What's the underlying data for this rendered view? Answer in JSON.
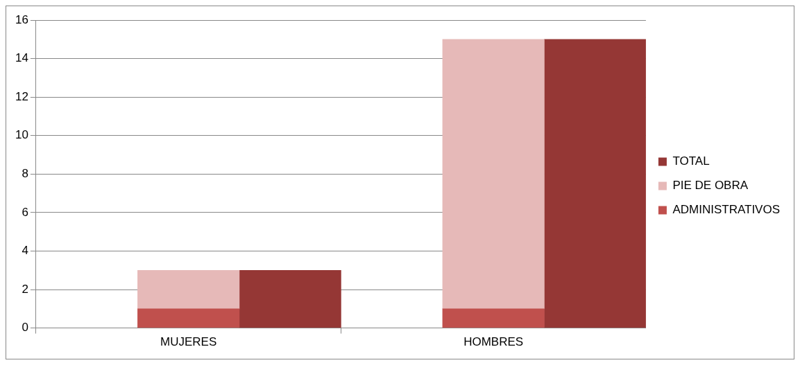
{
  "chart_data": {
    "type": "bar",
    "categories": [
      null,
      "MUJERES",
      null,
      null,
      "HOMBRES",
      null
    ],
    "stacked": true,
    "series": [
      {
        "name": "ADMINISTRATIVOS",
        "color": "#c0504d",
        "values": [
          null,
          1,
          null,
          null,
          1,
          null
        ]
      },
      {
        "name": "PIE DE OBRA",
        "color": "#e6b9b8",
        "values": [
          null,
          2,
          null,
          null,
          14,
          null
        ]
      },
      {
        "name": "TOTAL",
        "color": "#953735",
        "values": [
          null,
          null,
          3,
          null,
          null,
          15
        ]
      }
    ],
    "ylim": [
      0,
      16
    ],
    "yticks": [
      0,
      2,
      4,
      6,
      8,
      10,
      12,
      14,
      16
    ],
    "grid": "y",
    "legend": "right"
  }
}
